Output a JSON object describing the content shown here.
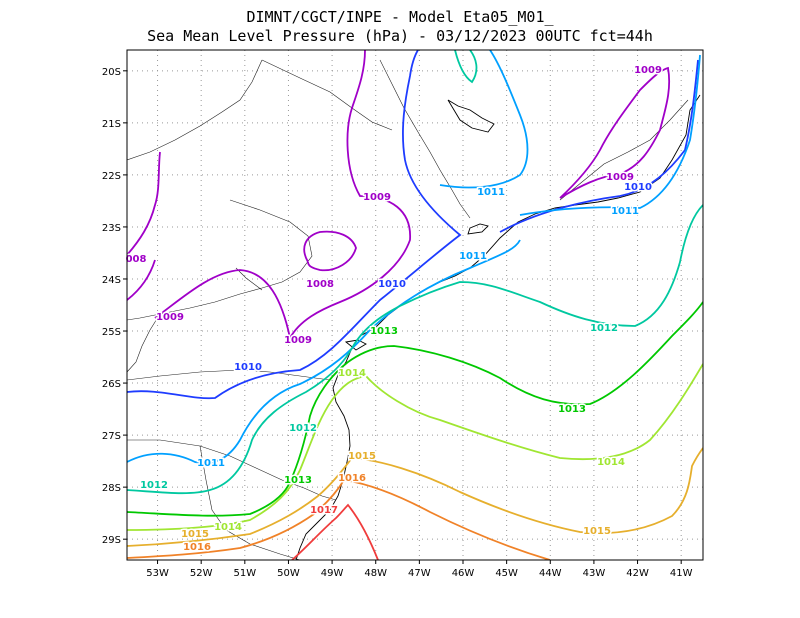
{
  "header": {
    "line1": "DIMNT/CGCT/INPE -  Model Eta05_M01_",
    "line2": "Sea Mean Level Pressure (hPa) - 03/12/2023 00UTC fct=44h"
  },
  "chart_data": {
    "type": "contour-map",
    "title": "DIMNT/CGCT/INPE -  Model Eta05_M01_",
    "subtitle": "Sea Mean Level Pressure (hPa) - 03/12/2023 00UTC fct=44h",
    "variable": "Sea Mean Level Pressure",
    "units": "hPa",
    "run": "03/12/2023 00UTC",
    "forecast_hour": 44,
    "lon_range": [
      -53.7,
      -40.5
    ],
    "lat_range": [
      -29.4,
      -19.6
    ],
    "xticks": [
      "53W",
      "52W",
      "51W",
      "50W",
      "49W",
      "48W",
      "47W",
      "46W",
      "45W",
      "44W",
      "43W",
      "42W",
      "41W"
    ],
    "yticks": [
      "20S",
      "21S",
      "22S",
      "23S",
      "24S",
      "25S",
      "26S",
      "27S",
      "28S",
      "29S"
    ],
    "grid": "dotted",
    "contour_levels": [
      1008,
      1009,
      1010,
      1011,
      1012,
      1013,
      1014,
      1015,
      1016,
      1017
    ],
    "contour_colors": {
      "1008": "#a000c8",
      "1009": "#a000c8",
      "1010": "#1e3cff",
      "1011": "#00a0ff",
      "1012": "#00c8a0",
      "1013": "#00c800",
      "1014": "#a0e632",
      "1015": "#e6af2d",
      "1016": "#f08228",
      "1017": "#f03c3c"
    },
    "contour_labels": [
      {
        "text": "1009",
        "color": "#a000c8"
      },
      {
        "text": "1009",
        "color": "#a000c8"
      },
      {
        "text": "1009",
        "color": "#a000c8"
      },
      {
        "text": "1009",
        "color": "#a000c8"
      },
      {
        "text": "1009",
        "color": "#a000c8"
      },
      {
        "text": "1008",
        "color": "#a000c8"
      },
      {
        "text": "008",
        "color": "#a000c8"
      },
      {
        "text": "1010",
        "color": "#1e3cff"
      },
      {
        "text": "1010",
        "color": "#1e3cff"
      },
      {
        "text": "1010",
        "color": "#1e3cff"
      },
      {
        "text": "1011",
        "color": "#00a0ff"
      },
      {
        "text": "1011",
        "color": "#00a0ff"
      },
      {
        "text": "1011",
        "color": "#00a0ff"
      },
      {
        "text": "1011",
        "color": "#00a0ff"
      },
      {
        "text": "1012",
        "color": "#00c8a0"
      },
      {
        "text": "1012",
        "color": "#00c8a0"
      },
      {
        "text": "1012",
        "color": "#00c8a0"
      },
      {
        "text": "1013",
        "color": "#00c800"
      },
      {
        "text": "1013",
        "color": "#00c800"
      },
      {
        "text": "1013",
        "color": "#00c800"
      },
      {
        "text": "1014",
        "color": "#a0e632"
      },
      {
        "text": "1014",
        "color": "#a0e632"
      },
      {
        "text": "1014",
        "color": "#a0e632"
      },
      {
        "text": "1015",
        "color": "#e6af2d"
      },
      {
        "text": "1015",
        "color": "#e6af2d"
      },
      {
        "text": "1015",
        "color": "#e6af2d"
      },
      {
        "text": "1016",
        "color": "#f08228"
      },
      {
        "text": "1016",
        "color": "#f08228"
      },
      {
        "text": "1017",
        "color": "#f03c3c"
      }
    ]
  }
}
